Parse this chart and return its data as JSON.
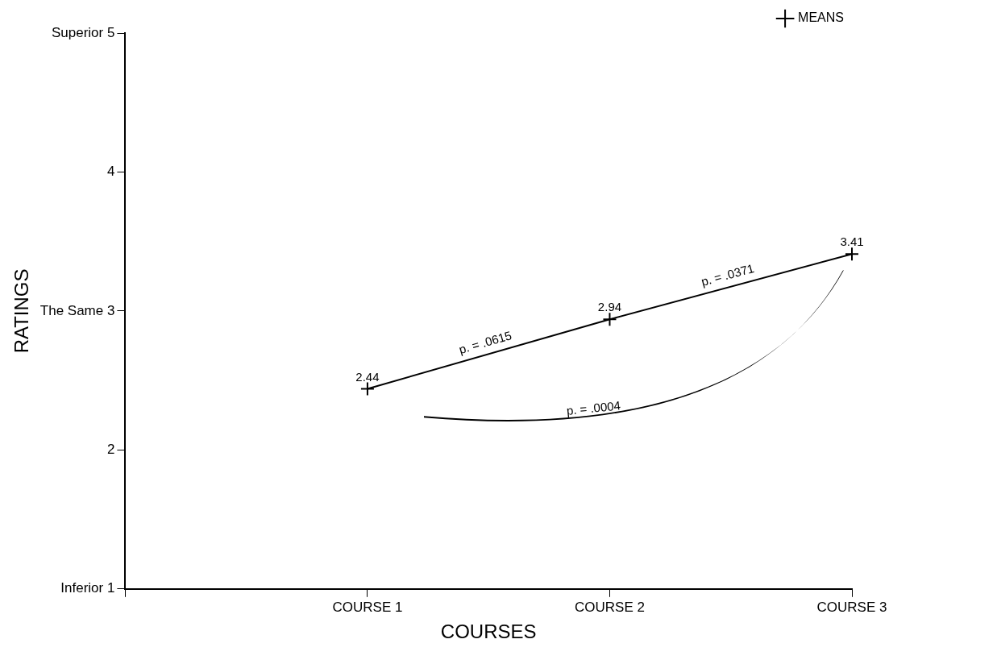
{
  "chart_data": {
    "type": "line",
    "xlabel": "COURSES",
    "ylabel": "RATINGS",
    "categories": [
      null,
      "COURSE 1",
      "COURSE 2",
      "COURSE 3"
    ],
    "series": [
      {
        "name": "MEANS",
        "color": "#000000",
        "values": [
          null,
          2.44,
          2.94,
          3.41
        ]
      }
    ],
    "ylim": [
      1,
      5
    ],
    "yticks": [
      {
        "value": 1,
        "label": "Inferior 1"
      },
      2,
      {
        "value": 3,
        "label": "The Same 3"
      },
      4,
      {
        "value": 5,
        "label": "Superior 5"
      }
    ],
    "data_labels": true,
    "marker": "cross",
    "line_style": "solid",
    "grid": false,
    "legend": "top right",
    "annotations": [
      "p. = .0615",
      "p. = .0371",
      "p. = .0004"
    ]
  }
}
